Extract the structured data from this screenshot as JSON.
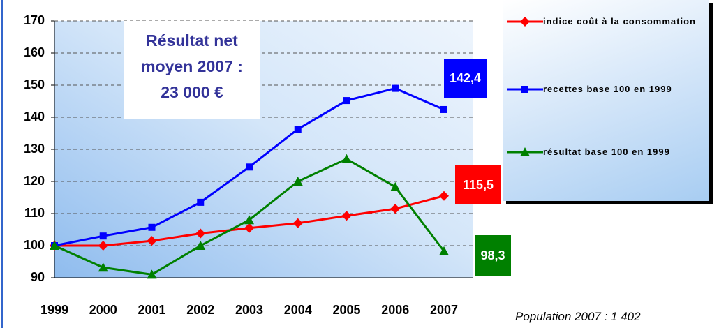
{
  "chart_data": {
    "type": "line",
    "categories": [
      "1999",
      "2000",
      "2001",
      "2002",
      "2003",
      "2004",
      "2005",
      "2006",
      "2007"
    ],
    "series": [
      {
        "name": "indice coût à la consommation",
        "color": "#ff0000",
        "marker": "diamond",
        "values": [
          100,
          100,
          101.5,
          103.8,
          105.5,
          107,
          109.3,
          111.5,
          115.5
        ],
        "value_labels": [
          null,
          null,
          null,
          null,
          null,
          null,
          null,
          null,
          "115,5"
        ]
      },
      {
        "name": "recettes base 100 en 1999",
        "color": "#0000ff",
        "marker": "square",
        "values": [
          100,
          103,
          105.7,
          113.5,
          124.5,
          136.3,
          145.2,
          149,
          142.4
        ],
        "value_labels": [
          null,
          null,
          null,
          null,
          null,
          null,
          null,
          null,
          "142,4"
        ]
      },
      {
        "name": "résultat base 100 en 1999",
        "color": "#008000",
        "marker": "triangle",
        "values": [
          100,
          93.2,
          91,
          100,
          108,
          120,
          127,
          118.3,
          98.3
        ],
        "value_labels": [
          null,
          null,
          null,
          null,
          null,
          null,
          null,
          null,
          "98,3"
        ]
      }
    ],
    "ylim": [
      90,
      170
    ],
    "yticks": [
      90,
      100,
      110,
      120,
      130,
      140,
      150,
      160,
      170
    ],
    "grid": true,
    "legend": "right",
    "annotation": [
      "Résultat net",
      "moyen 2007 :",
      "23 000 €"
    ],
    "footnote": "Population 2007 : 1 402"
  }
}
